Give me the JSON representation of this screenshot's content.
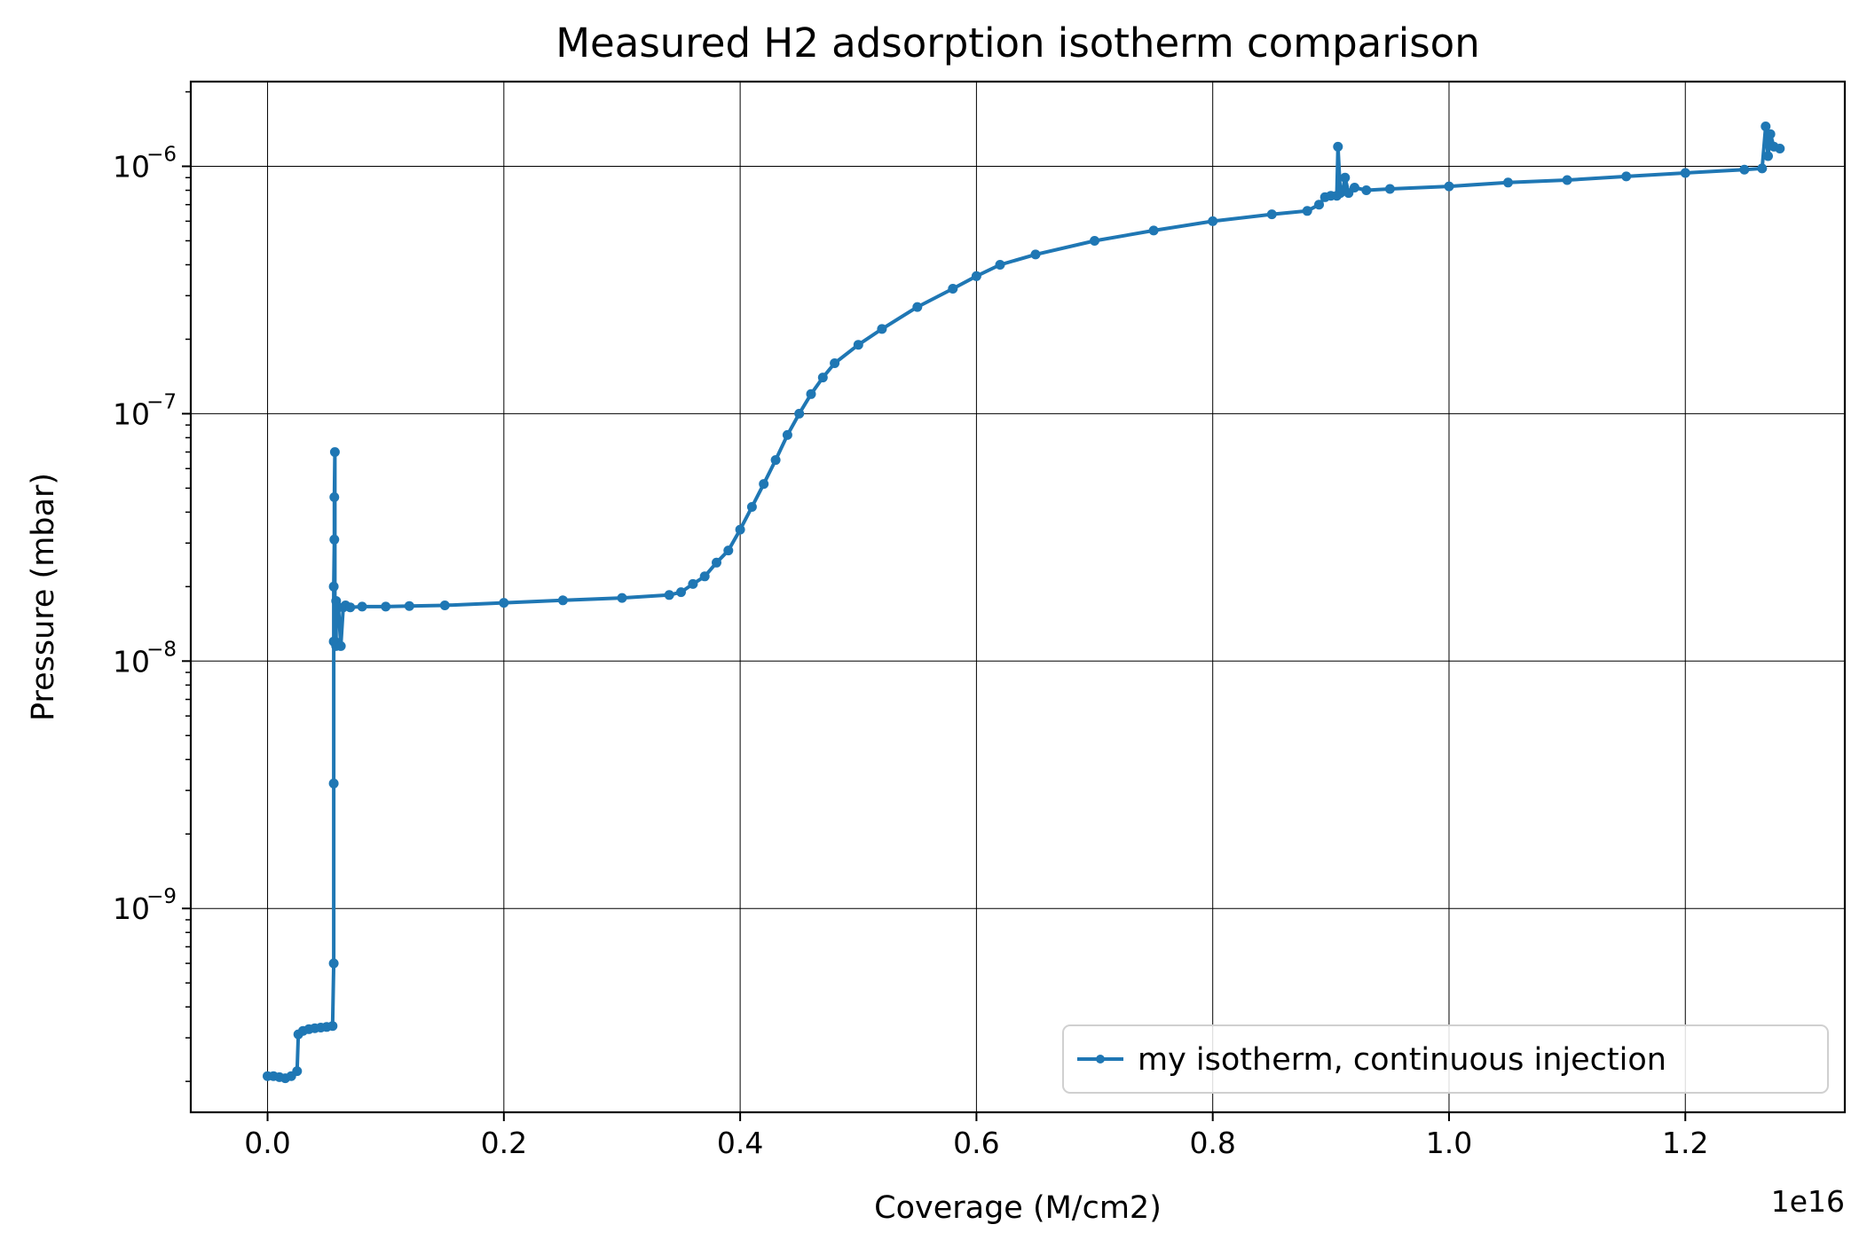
{
  "chart_data": {
    "type": "line",
    "title": "Measured H2 adsorption isotherm comparison",
    "xlabel": "Coverage (M/cm2)",
    "ylabel": "Pressure (mbar)",
    "x_offset_label": "1e16",
    "x_multiplier": 1e+16,
    "xlim": [
      -0.065,
      1.335
    ],
    "ylim": [
      1.5e-10,
      2.2e-06
    ],
    "yscale": "log",
    "grid": true,
    "legend_position": "lower-right",
    "x_ticks": [
      0.0,
      0.2,
      0.4,
      0.6,
      0.8,
      1.0,
      1.2
    ],
    "x_tick_labels": [
      "0.0",
      "0.2",
      "0.4",
      "0.6",
      "0.8",
      "1.0",
      "1.2"
    ],
    "y_ticks": [
      {
        "value": 1e-09,
        "base": "10",
        "exp": "−9"
      },
      {
        "value": 1e-08,
        "base": "10",
        "exp": "−8"
      },
      {
        "value": 1e-07,
        "base": "10",
        "exp": "−7"
      },
      {
        "value": 1e-06,
        "base": "10",
        "exp": "−6"
      }
    ],
    "series": [
      {
        "name": "my isotherm, continuous injection",
        "color": "#1f77b4",
        "marker": "point",
        "x": [
          0.0,
          0.005,
          0.01,
          0.015,
          0.02,
          0.025,
          0.026,
          0.03,
          0.035,
          0.04,
          0.045,
          0.05,
          0.055,
          0.056,
          0.056,
          0.056,
          0.056,
          0.0565,
          0.0565,
          0.057,
          0.057,
          0.058,
          0.058,
          0.06,
          0.062,
          0.064,
          0.066,
          0.07,
          0.08,
          0.1,
          0.12,
          0.15,
          0.2,
          0.25,
          0.3,
          0.34,
          0.35,
          0.36,
          0.37,
          0.38,
          0.39,
          0.4,
          0.41,
          0.42,
          0.43,
          0.44,
          0.45,
          0.46,
          0.47,
          0.48,
          0.5,
          0.52,
          0.55,
          0.58,
          0.6,
          0.62,
          0.65,
          0.7,
          0.75,
          0.8,
          0.85,
          0.88,
          0.89,
          0.895,
          0.9,
          0.905,
          0.906,
          0.908,
          0.91,
          0.912,
          0.915,
          0.92,
          0.93,
          0.95,
          1.0,
          1.05,
          1.1,
          1.15,
          1.2,
          1.25,
          1.265,
          1.268,
          1.27,
          1.272,
          1.275,
          1.28
        ],
        "y": [
          2.1e-10,
          2.1e-10,
          2.08e-10,
          2.06e-10,
          2.1e-10,
          2.2e-10,
          3.1e-10,
          3.2e-10,
          3.25e-10,
          3.28e-10,
          3.3e-10,
          3.32e-10,
          3.35e-10,
          6e-10,
          3.2e-09,
          1.2e-08,
          2e-08,
          3.1e-08,
          4.6e-08,
          7e-08,
          1.2e-08,
          1.15e-08,
          1.75e-08,
          1.65e-08,
          1.15e-08,
          1.65e-08,
          1.68e-08,
          1.65e-08,
          1.66e-08,
          1.66e-08,
          1.67e-08,
          1.68e-08,
          1.72e-08,
          1.76e-08,
          1.8e-08,
          1.85e-08,
          1.9e-08,
          2.05e-08,
          2.2e-08,
          2.5e-08,
          2.8e-08,
          3.4e-08,
          4.2e-08,
          5.2e-08,
          6.5e-08,
          8.2e-08,
          1e-07,
          1.2e-07,
          1.4e-07,
          1.6e-07,
          1.9e-07,
          2.2e-07,
          2.7e-07,
          3.2e-07,
          3.6e-07,
          4e-07,
          4.4e-07,
          5e-07,
          5.5e-07,
          6e-07,
          6.4e-07,
          6.6e-07,
          7e-07,
          7.5e-07,
          7.6e-07,
          7.6e-07,
          1.2e-06,
          7.8e-07,
          8e-07,
          9e-07,
          7.8e-07,
          8.2e-07,
          8e-07,
          8.1e-07,
          8.3e-07,
          8.6e-07,
          8.8e-07,
          9.1e-07,
          9.4e-07,
          9.7e-07,
          9.8e-07,
          1.45e-06,
          1.1e-06,
          1.35e-06,
          1.2e-06,
          1.18e-06
        ]
      }
    ]
  }
}
